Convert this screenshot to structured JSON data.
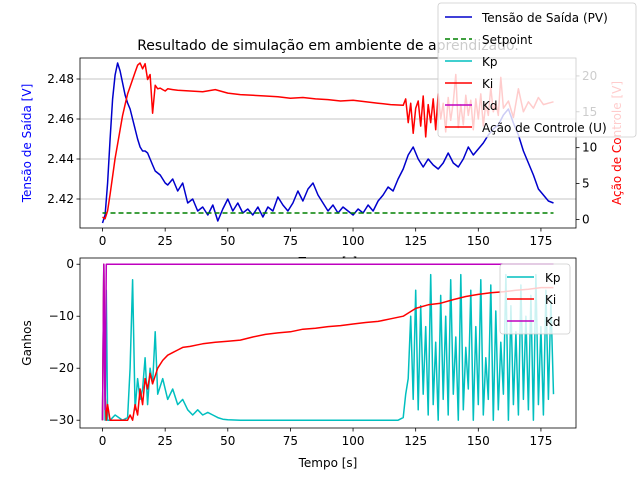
{
  "title": "Resultado de simulação em ambiente de aprendizado.",
  "colors": {
    "pv": "#0000cc",
    "setpoint": "#008000",
    "kp": "#00bfbf",
    "ki": "#ff0000",
    "kd": "#bf00bf",
    "u": "#ff0000"
  },
  "chart_data": [
    {
      "type": "line",
      "title": "Resultado de simulação em ambiente de aprendizado.",
      "xlabel": "Tempo [s]",
      "ylabel": "Tensão de Saída [V]",
      "ylabel_right": "Ação de Controle [V]",
      "xlim": [
        -9,
        189
      ],
      "ylim": [
        2.4055,
        2.4905
      ],
      "ylim_right": [
        -1.2,
        22.5
      ],
      "xticks": [
        0,
        25,
        50,
        75,
        100,
        125,
        150,
        175
      ],
      "yticks": [
        "2.42",
        "2.44",
        "2.46",
        "2.48"
      ],
      "yticks_right": [
        0,
        5,
        10,
        15,
        20
      ],
      "grid": "y",
      "legend": "top-right",
      "series": [
        {
          "name": "Tensão de Saída (PV)",
          "axis": "left",
          "x": [
            0,
            1,
            2,
            3,
            4,
            5,
            6,
            7,
            8,
            9,
            10,
            11,
            12,
            13,
            14,
            15,
            16,
            17,
            18,
            19,
            20,
            21,
            22,
            23,
            24,
            25,
            26,
            28,
            30,
            32,
            34,
            36,
            38,
            40,
            42,
            44,
            46,
            48,
            50,
            52,
            54,
            56,
            58,
            60,
            62,
            64,
            66,
            68,
            70,
            72,
            74,
            76,
            78,
            80,
            82,
            84,
            86,
            88,
            90,
            92,
            94,
            96,
            98,
            100,
            102,
            104,
            106,
            108,
            110,
            112,
            114,
            116,
            118,
            120,
            122,
            124,
            126,
            128,
            130,
            132,
            134,
            136,
            138,
            140,
            142,
            144,
            146,
            148,
            150,
            152,
            154,
            156,
            158,
            160,
            162,
            164,
            166,
            168,
            170,
            172,
            174,
            176,
            178,
            180
          ],
          "y": [
            2.408,
            2.412,
            2.428,
            2.45,
            2.47,
            2.482,
            2.488,
            2.484,
            2.478,
            2.472,
            2.468,
            2.465,
            2.46,
            2.455,
            2.45,
            2.446,
            2.444,
            2.444,
            2.443,
            2.44,
            2.437,
            2.434,
            2.433,
            2.432,
            2.43,
            2.428,
            2.427,
            2.43,
            2.424,
            2.428,
            2.418,
            2.42,
            2.414,
            2.416,
            2.412,
            2.417,
            2.409,
            2.415,
            2.42,
            2.414,
            2.418,
            2.413,
            2.415,
            2.412,
            2.416,
            2.411,
            2.416,
            2.414,
            2.421,
            2.417,
            2.414,
            2.418,
            2.424,
            2.419,
            2.425,
            2.428,
            2.422,
            2.418,
            2.414,
            2.417,
            2.413,
            2.416,
            2.414,
            2.412,
            2.415,
            2.413,
            2.417,
            2.414,
            2.419,
            2.422,
            2.426,
            2.424,
            2.43,
            2.435,
            2.442,
            2.446,
            2.44,
            2.436,
            2.44,
            2.437,
            2.435,
            2.438,
            2.443,
            2.438,
            2.436,
            2.44,
            2.446,
            2.442,
            2.445,
            2.448,
            2.452,
            2.455,
            2.457,
            2.462,
            2.465,
            2.458,
            2.452,
            2.444,
            2.438,
            2.432,
            2.425,
            2.422,
            2.419,
            2.418
          ]
        },
        {
          "name": "Setpoint",
          "axis": "left",
          "x": [
            0,
            180
          ],
          "y": [
            2.413,
            2.413
          ]
        },
        {
          "name": "Ação de Controle (U)",
          "axis": "right",
          "x": [
            0,
            1,
            2,
            3,
            4,
            5,
            6,
            7,
            8,
            9,
            10,
            11,
            12,
            13,
            14,
            15,
            16,
            17,
            18,
            19,
            20,
            21,
            22,
            23,
            24,
            25,
            26,
            28,
            30,
            35,
            40,
            45,
            50,
            55,
            60,
            65,
            70,
            75,
            80,
            85,
            90,
            95,
            100,
            105,
            110,
            115,
            120,
            121,
            122,
            123,
            124,
            125,
            126,
            127,
            128,
            129,
            130,
            131,
            132,
            133,
            134,
            135,
            136,
            137,
            138,
            139,
            140,
            141,
            142,
            143,
            144,
            145,
            146,
            147,
            148,
            149,
            150,
            151,
            152,
            153,
            154,
            155,
            156,
            157,
            158,
            159,
            160,
            162,
            164,
            166,
            168,
            170,
            172,
            174,
            176,
            178,
            180
          ],
          "y": [
            0.3,
            0.1,
            1.2,
            3.5,
            6.0,
            8.5,
            10.5,
            12.5,
            14.5,
            16.0,
            17.5,
            18.5,
            19.5,
            20.5,
            21.5,
            21.8,
            21.0,
            21.7,
            19.5,
            20.2,
            14.8,
            18.7,
            18.2,
            18.3,
            18.1,
            17.9,
            18.2,
            18.1,
            18.0,
            17.9,
            17.8,
            18.1,
            17.6,
            17.4,
            17.3,
            17.2,
            17.1,
            16.9,
            17.0,
            16.8,
            16.7,
            16.5,
            16.6,
            16.4,
            16.2,
            16.0,
            15.9,
            16.8,
            13.5,
            16.2,
            12.0,
            15.5,
            16.5,
            13.0,
            17.2,
            11.5,
            16.0,
            13.5,
            16.8,
            12.5,
            17.5,
            14.0,
            16.2,
            12.2,
            17.0,
            13.8,
            16.4,
            20.2,
            12.8,
            16.0,
            13.2,
            17.3,
            14.5,
            16.6,
            12.5,
            16.8,
            14.0,
            17.5,
            13.0,
            16.2,
            14.5,
            18.4,
            15.0,
            16.3,
            14.5,
            19.8,
            15.5,
            16.5,
            14.2,
            18.2,
            15.0,
            16.4,
            15.5,
            17.0,
            16.0,
            16.2,
            16.4
          ]
        }
      ]
    },
    {
      "type": "line",
      "xlabel": "Tempo [s]",
      "ylabel": "Ganhos",
      "xlim": [
        -9,
        189
      ],
      "ylim": [
        -31.5,
        1.2
      ],
      "xticks": [
        0,
        25,
        50,
        75,
        100,
        125,
        150,
        175
      ],
      "yticks": [
        0,
        -10,
        -20,
        -30
      ],
      "legend": "top-right",
      "series": [
        {
          "name": "Kp",
          "x": [
            0,
            0.5,
            1,
            1.5,
            2,
            3,
            5,
            8,
            10,
            11,
            12,
            13,
            14,
            15,
            16,
            17,
            18,
            19,
            20,
            21,
            22,
            24,
            26,
            28,
            30,
            32,
            34,
            36,
            38,
            40,
            42,
            44,
            46,
            48,
            50,
            55,
            60,
            70,
            80,
            90,
            100,
            110,
            118,
            120,
            121,
            122,
            123,
            124,
            125,
            126,
            127,
            128,
            129,
            130,
            131,
            132,
            133,
            134,
            135,
            136,
            137,
            138,
            139,
            140,
            141,
            142,
            143,
            144,
            145,
            146,
            147,
            148,
            149,
            150,
            151,
            152,
            153,
            154,
            155,
            156,
            157,
            158,
            159,
            160,
            161,
            162,
            163,
            164,
            165,
            166,
            167,
            168,
            169,
            170,
            171,
            172,
            173,
            174,
            175,
            176,
            177,
            178,
            179,
            180
          ],
          "y": [
            -30,
            0,
            -30,
            -5,
            -30,
            -30,
            -29,
            -30,
            -29.5,
            -20,
            -3,
            -28,
            -22,
            -26,
            -24,
            -18,
            -27,
            -20,
            -23,
            -13,
            -25,
            -22,
            -26,
            -24,
            -27,
            -26,
            -28,
            -29,
            -28,
            -29,
            -28.5,
            -29,
            -29.5,
            -29.8,
            -29.9,
            -30,
            -30,
            -30,
            -30,
            -30,
            -30,
            -30,
            -30,
            -29.5,
            -25,
            -22,
            -10,
            -26,
            -5,
            -28,
            -8,
            -25,
            -12,
            -29,
            -2,
            -27,
            -15,
            -30,
            -6,
            -26,
            -10,
            -29,
            -3,
            -25,
            -14,
            -30,
            -2,
            -28,
            -16,
            -24,
            -5,
            -30,
            -12,
            -27,
            -3,
            -29,
            -18,
            -26,
            -4,
            -30,
            -9,
            -28,
            -15,
            -25,
            -2,
            -30,
            -8,
            -27,
            -13,
            -29,
            -4,
            -26,
            -10,
            -28,
            -6,
            -30,
            -2,
            -27,
            -12,
            -29,
            -5,
            -26,
            -7,
            -25
          ]
        },
        {
          "name": "Ki",
          "x": [
            0,
            0.5,
            1,
            1.5,
            2,
            3,
            5,
            8,
            10,
            11,
            12,
            13,
            14,
            15,
            16,
            17,
            18,
            19,
            20,
            22,
            24,
            26,
            28,
            30,
            32,
            35,
            38,
            40,
            45,
            50,
            55,
            60,
            65,
            70,
            75,
            80,
            85,
            90,
            95,
            100,
            105,
            110,
            115,
            120,
            125,
            130,
            135,
            140,
            145,
            150,
            155,
            160,
            165,
            170,
            175,
            180
          ],
          "y": [
            -30,
            0,
            -25,
            -30,
            -27,
            -30,
            -30,
            -30,
            -30,
            -29,
            -30,
            -27,
            -29,
            -24,
            -27,
            -22,
            -24,
            -21,
            -23,
            -20,
            -18.5,
            -17.5,
            -17,
            -16.5,
            -16,
            -15.8,
            -15.5,
            -15.3,
            -15,
            -14.8,
            -14.6,
            -14,
            -13.5,
            -13.2,
            -13,
            -12.5,
            -12.3,
            -12,
            -11.8,
            -11.5,
            -11.2,
            -11,
            -10.5,
            -10,
            -8.5,
            -7.8,
            -7.5,
            -6.8,
            -6.2,
            -5.8,
            -5.5,
            -5.3,
            -5,
            -4.8,
            -4.5,
            -4.5
          ]
        },
        {
          "name": "Kd",
          "x": [
            0,
            0.5,
            1,
            1.5,
            2,
            3,
            180
          ],
          "y": [
            -30,
            0,
            -28,
            0,
            0,
            0,
            0
          ]
        }
      ]
    }
  ],
  "legend_top": {
    "items": [
      "Tensão de Saída (PV)",
      "Setpoint",
      "Kp",
      "Ki",
      "Kd",
      "Ação de Controle (U)"
    ]
  },
  "legend_bottom": {
    "items": [
      "Kp",
      "Ki",
      "Kd"
    ]
  }
}
